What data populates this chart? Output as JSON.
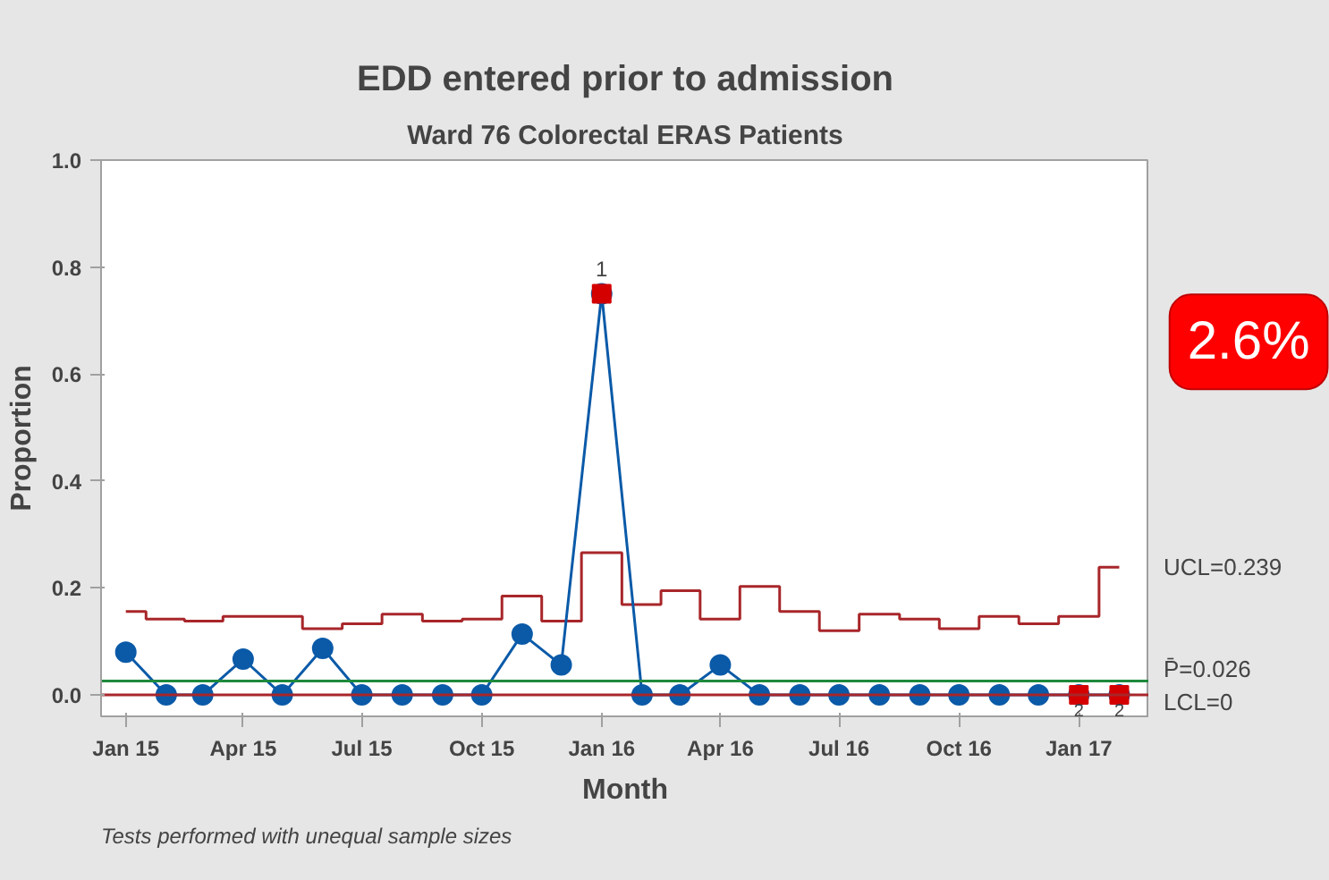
{
  "chart_data": {
    "type": "line",
    "title": "EDD entered prior to admission",
    "subtitle": "Ward 76 Colorectal ERAS Patients",
    "xlabel": "Month",
    "ylabel": "Proportion",
    "x": [
      "2015-01",
      "2015-02",
      "2015-03",
      "2015-04",
      "2015-05",
      "2015-06",
      "2015-07",
      "2015-08",
      "2015-09",
      "2015-10",
      "2015-11",
      "2015-12",
      "2016-01",
      "2016-02",
      "2016-03",
      "2016-04",
      "2016-05",
      "2016-06",
      "2016-07",
      "2016-08",
      "2016-09",
      "2016-10",
      "2016-11",
      "2016-12",
      "2017-01",
      "2017-02"
    ],
    "series": [
      {
        "type": "step",
        "color": "#a8262a",
        "values": [
          0.156,
          0.142,
          0.138,
          0.147,
          0.147,
          0.124,
          0.133,
          0.151,
          0.138,
          0.142,
          0.185,
          0.138,
          0.266,
          0.169,
          0.195,
          0.142,
          0.203,
          0.156,
          0.12,
          0.151,
          0.142,
          0.124,
          0.147,
          0.133,
          0.147,
          0.239
        ]
      },
      {
        "color": "#0a5aa8",
        "marker": "circle",
        "values": [
          0.08,
          0,
          0,
          0.067,
          0,
          0.087,
          0,
          0,
          0,
          0,
          0.114,
          0.056,
          0.75,
          0,
          0,
          0.056,
          0,
          0,
          0,
          0,
          0,
          0,
          0,
          0,
          0,
          0
        ]
      },
      {
        "type": "scatter",
        "color": "#d40000",
        "marker": "square",
        "values": [
          null,
          null,
          null,
          null,
          null,
          null,
          null,
          null,
          null,
          null,
          null,
          null,
          0.75,
          null,
          null,
          null,
          null,
          null,
          null,
          null,
          null,
          null,
          null,
          null,
          0,
          0
        ]
      }
    ],
    "ref_lines": [
      {
        "axis": "y",
        "value": 0.026,
        "label": "P̄=0.026",
        "color": "#1e8a3c"
      },
      {
        "axis": "y",
        "value": 0,
        "label": "LCL=0",
        "color": "#a8262a"
      }
    ],
    "annotations": [
      "Tests performed with unequal sample sizes",
      "2.6%",
      "UCL=0.239",
      {
        "text": "1",
        "x": "2016-01",
        "y": 0.75
      },
      {
        "text": "2",
        "x": "2017-01",
        "y": 0
      },
      {
        "text": "2",
        "x": "2017-02",
        "y": 0
      }
    ],
    "xlim": [
      "2014-12-13",
      "2017-02-24"
    ],
    "xticks": [
      {
        "value": "2015-01",
        "label": "Jan 15"
      },
      {
        "value": "2015-04",
        "label": "Apr 15"
      },
      {
        "value": "2015-07",
        "label": "Jul 15"
      },
      {
        "value": "2015-10",
        "label": "Oct 15"
      },
      {
        "value": "2016-01",
        "label": "Jan 16"
      },
      {
        "value": "2016-04",
        "label": "Apr 16"
      },
      {
        "value": "2016-07",
        "label": "Jul 16"
      },
      {
        "value": "2016-10",
        "label": "Oct 16"
      },
      {
        "value": "2017-01",
        "label": "Jan 17"
      }
    ],
    "ylim": [
      -0.04,
      1.0
    ],
    "yticks": [
      {
        "value": 0,
        "label": "0.0"
      },
      {
        "value": 0.2,
        "label": "0.2"
      },
      {
        "value": 0.4,
        "label": "0.4"
      },
      {
        "value": 0.6,
        "label": "0.6"
      },
      {
        "value": 0.8,
        "label": "0.8"
      },
      {
        "value": 1.0,
        "label": "1.0"
      }
    ],
    "grid": false
  }
}
